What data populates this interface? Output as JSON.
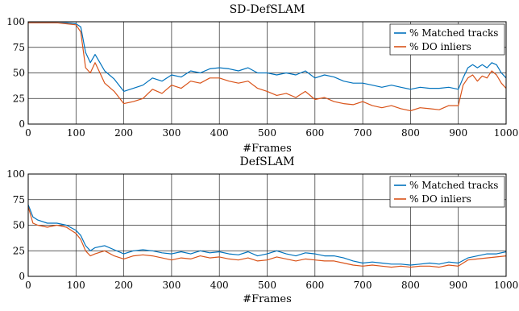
{
  "chart_data": [
    {
      "type": "line",
      "title": "SD-DefSLAM",
      "xlabel": "#Frames",
      "ylabel": "",
      "xlim": [
        0,
        1000
      ],
      "ylim": [
        0,
        100
      ],
      "xticks": [
        0,
        100,
        200,
        300,
        400,
        500,
        600,
        700,
        800,
        900,
        1000
      ],
      "yticks": [
        0,
        25,
        50,
        75,
        100
      ],
      "grid": true,
      "legend_position": "top-right",
      "series": [
        {
          "name": "% Matched tracks",
          "color": "#0072BD",
          "x": [
            0,
            20,
            40,
            60,
            80,
            100,
            110,
            120,
            130,
            140,
            150,
            160,
            180,
            200,
            220,
            240,
            260,
            280,
            300,
            320,
            340,
            360,
            380,
            400,
            420,
            440,
            460,
            480,
            500,
            520,
            540,
            560,
            580,
            600,
            620,
            640,
            660,
            680,
            700,
            720,
            740,
            760,
            780,
            800,
            820,
            840,
            860,
            880,
            900,
            910,
            920,
            930,
            940,
            950,
            960,
            970,
            980,
            990,
            1000
          ],
          "values": [
            99,
            99,
            99,
            99,
            99,
            98,
            95,
            70,
            60,
            68,
            60,
            52,
            44,
            32,
            35,
            38,
            45,
            42,
            48,
            46,
            52,
            50,
            54,
            55,
            54,
            52,
            55,
            50,
            50,
            48,
            50,
            48,
            52,
            45,
            48,
            46,
            42,
            40,
            40,
            38,
            36,
            38,
            36,
            34,
            36,
            35,
            35,
            36,
            34,
            45,
            55,
            58,
            55,
            58,
            55,
            60,
            58,
            50,
            45
          ]
        },
        {
          "name": "% DO inliers",
          "color": "#D95319",
          "x": [
            0,
            20,
            40,
            60,
            80,
            100,
            110,
            120,
            130,
            140,
            150,
            160,
            180,
            200,
            220,
            240,
            260,
            280,
            300,
            320,
            340,
            360,
            380,
            400,
            420,
            440,
            460,
            480,
            500,
            520,
            540,
            560,
            580,
            600,
            620,
            640,
            660,
            680,
            700,
            720,
            740,
            760,
            780,
            800,
            820,
            840,
            860,
            880,
            900,
            910,
            920,
            930,
            940,
            950,
            960,
            970,
            980,
            990,
            1000
          ],
          "values": [
            99,
            99,
            99,
            99,
            98,
            97,
            90,
            55,
            50,
            60,
            50,
            40,
            32,
            20,
            22,
            25,
            34,
            30,
            38,
            35,
            42,
            40,
            45,
            45,
            42,
            40,
            42,
            35,
            32,
            28,
            30,
            26,
            32,
            24,
            26,
            22,
            20,
            19,
            22,
            18,
            16,
            18,
            15,
            13,
            16,
            15,
            14,
            18,
            18,
            38,
            45,
            48,
            42,
            47,
            45,
            52,
            48,
            40,
            35
          ]
        }
      ]
    },
    {
      "type": "line",
      "title": "DefSLAM",
      "xlabel": "#Frames",
      "ylabel": "",
      "xlim": [
        0,
        1000
      ],
      "ylim": [
        0,
        100
      ],
      "xticks": [
        0,
        100,
        200,
        300,
        400,
        500,
        600,
        700,
        800,
        900,
        1000
      ],
      "yticks": [
        0,
        25,
        50,
        75,
        100
      ],
      "grid": true,
      "legend_position": "top-right",
      "series": [
        {
          "name": "% Matched tracks",
          "color": "#0072BD",
          "x": [
            0,
            10,
            20,
            40,
            60,
            80,
            100,
            110,
            120,
            130,
            140,
            160,
            180,
            200,
            220,
            240,
            260,
            280,
            300,
            320,
            340,
            360,
            380,
            400,
            420,
            440,
            460,
            480,
            500,
            520,
            540,
            560,
            580,
            600,
            620,
            640,
            660,
            680,
            700,
            720,
            740,
            760,
            780,
            800,
            820,
            840,
            860,
            880,
            900,
            920,
            940,
            960,
            980,
            1000
          ],
          "values": [
            70,
            58,
            55,
            52,
            52,
            50,
            45,
            40,
            30,
            25,
            28,
            30,
            26,
            22,
            25,
            26,
            25,
            23,
            22,
            24,
            22,
            25,
            23,
            24,
            22,
            21,
            24,
            20,
            22,
            25,
            22,
            20,
            23,
            22,
            20,
            20,
            18,
            15,
            13,
            14,
            13,
            12,
            12,
            11,
            12,
            13,
            12,
            14,
            13,
            18,
            20,
            22,
            22,
            24
          ]
        },
        {
          "name": "% DO inliers",
          "color": "#D95319",
          "x": [
            0,
            10,
            20,
            40,
            60,
            80,
            100,
            110,
            120,
            130,
            140,
            160,
            180,
            200,
            220,
            240,
            260,
            280,
            300,
            320,
            340,
            360,
            380,
            400,
            420,
            440,
            460,
            480,
            500,
            520,
            540,
            560,
            580,
            600,
            620,
            640,
            660,
            680,
            700,
            720,
            740,
            760,
            780,
            800,
            820,
            840,
            860,
            880,
            900,
            920,
            940,
            960,
            980,
            1000
          ],
          "values": [
            68,
            52,
            50,
            48,
            50,
            48,
            42,
            36,
            25,
            20,
            22,
            25,
            20,
            17,
            20,
            21,
            20,
            18,
            16,
            18,
            17,
            20,
            18,
            19,
            17,
            16,
            18,
            15,
            16,
            19,
            17,
            15,
            17,
            16,
            15,
            15,
            13,
            11,
            10,
            11,
            10,
            9,
            10,
            9,
            10,
            10,
            9,
            11,
            10,
            16,
            17,
            18,
            19,
            20
          ]
        }
      ]
    }
  ]
}
